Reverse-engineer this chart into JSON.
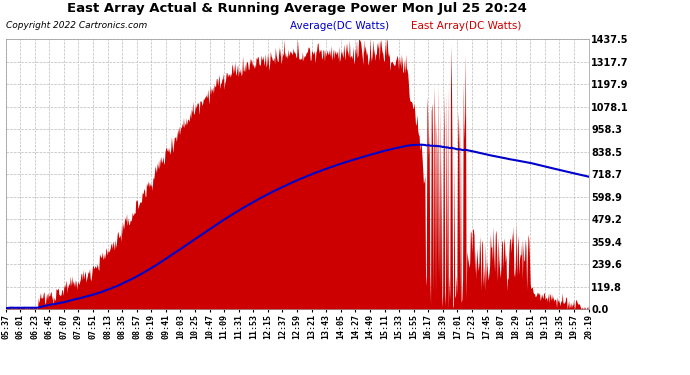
{
  "title": "East Array Actual & Running Average Power Mon Jul 25 20:24",
  "copyright": "Copyright 2022 Cartronics.com",
  "legend_avg": "Average(DC Watts)",
  "legend_east": "East Array(DC Watts)",
  "yticks": [
    0.0,
    119.8,
    239.6,
    359.4,
    479.2,
    598.9,
    718.7,
    838.5,
    958.3,
    1078.1,
    1197.9,
    1317.7,
    1437.5
  ],
  "ymax": 1437.5,
  "ymin": 0.0,
  "bg_color": "#ffffff",
  "plot_bg": "#ffffff",
  "grid_color": "#bbbbbb",
  "fill_color": "#cc0000",
  "avg_color": "#0000cc",
  "title_color": "#000000",
  "copyright_color": "#000000",
  "legend_avg_color": "#0000cc",
  "legend_east_color": "#cc0000",
  "xtick_labels": [
    "05:37",
    "06:01",
    "06:23",
    "06:45",
    "07:07",
    "07:29",
    "07:51",
    "08:13",
    "08:35",
    "08:57",
    "09:19",
    "09:41",
    "10:03",
    "10:25",
    "10:47",
    "11:09",
    "11:31",
    "11:53",
    "12:15",
    "12:37",
    "12:59",
    "13:21",
    "13:43",
    "14:05",
    "14:27",
    "14:49",
    "15:11",
    "15:33",
    "15:55",
    "16:17",
    "16:39",
    "17:01",
    "17:23",
    "17:45",
    "18:07",
    "18:29",
    "18:51",
    "19:13",
    "19:35",
    "19:57",
    "20:19"
  ],
  "n_points": 820
}
